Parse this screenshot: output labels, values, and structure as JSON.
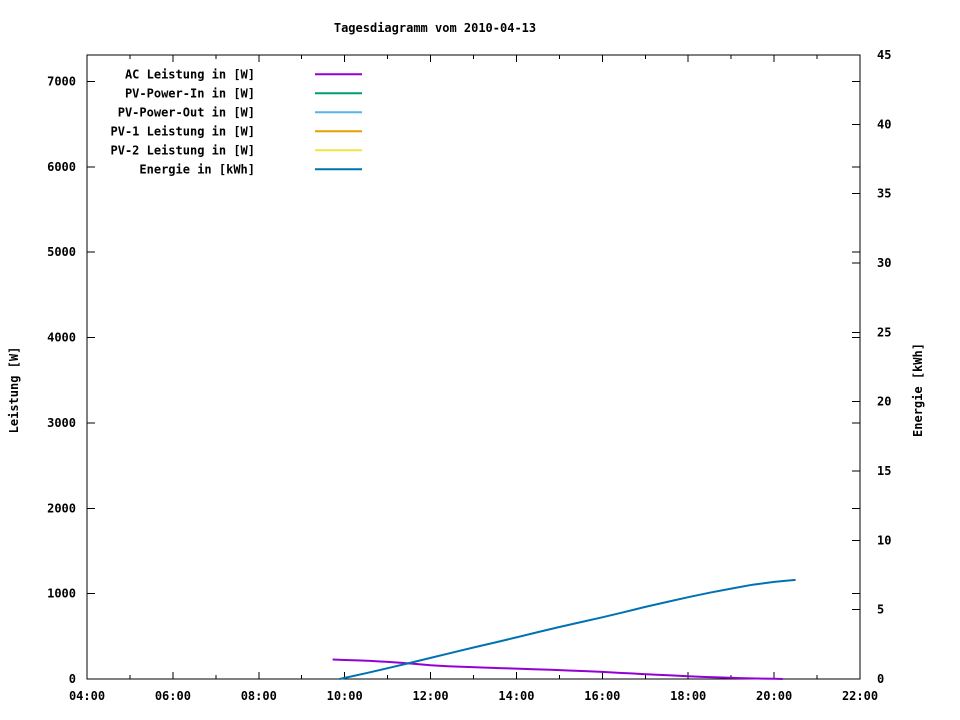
{
  "page": {
    "background": "#FFFFFF",
    "text_color": "#000000"
  },
  "chart_data": {
    "type": "line",
    "title": "Tagesdiagramm vom 2010-04-13",
    "grid": false,
    "legend_position": "top-left",
    "x_axis": {
      "unit": "time-of-day",
      "start_hour": 4,
      "end_hour": 22,
      "major_step_hours": 2,
      "minor_step_hours": 1,
      "tick_labels": [
        "04:00",
        "06:00",
        "08:00",
        "10:00",
        "12:00",
        "14:00",
        "16:00",
        "18:00",
        "20:00",
        "22:00"
      ]
    },
    "y_left": {
      "label": "Leistung [W]",
      "ticks": [
        0,
        1000,
        2000,
        3000,
        4000,
        5000,
        6000,
        7000
      ],
      "range": [
        0,
        7310
      ]
    },
    "y_right": {
      "label": "Energie [kWh]",
      "ticks": [
        0,
        5,
        10,
        15,
        20,
        25,
        30,
        35,
        40,
        45
      ],
      "range": [
        0,
        45
      ]
    },
    "series": [
      {
        "name": "AC Leistung in [W]",
        "color": "#9400D3",
        "axis": "left",
        "points": [
          [
            9.72,
            228
          ],
          [
            10.0,
            222
          ],
          [
            10.3,
            218
          ],
          [
            10.6,
            212
          ],
          [
            11.0,
            200
          ],
          [
            11.3,
            190
          ],
          [
            11.6,
            178
          ],
          [
            12.0,
            160
          ],
          [
            12.4,
            150
          ],
          [
            12.8,
            142
          ],
          [
            13.2,
            135
          ],
          [
            13.6,
            128
          ],
          [
            14.0,
            122
          ],
          [
            14.4,
            115
          ],
          [
            14.8,
            108
          ],
          [
            15.2,
            100
          ],
          [
            15.6,
            92
          ],
          [
            16.0,
            83
          ],
          [
            16.4,
            72
          ],
          [
            16.8,
            62
          ],
          [
            17.2,
            52
          ],
          [
            17.6,
            42
          ],
          [
            18.0,
            32
          ],
          [
            18.4,
            24
          ],
          [
            18.8,
            17
          ],
          [
            19.2,
            11
          ],
          [
            19.6,
            6
          ],
          [
            20.0,
            2
          ],
          [
            20.2,
            0
          ]
        ]
      },
      {
        "name": "PV-Power-In in [W]",
        "color": "#009E73",
        "axis": "left",
        "points": []
      },
      {
        "name": "PV-Power-Out in [W]",
        "color": "#56B4E9",
        "axis": "left",
        "points": []
      },
      {
        "name": "PV-1 Leistung in [W]",
        "color": "#E69F00",
        "axis": "left",
        "points": []
      },
      {
        "name": "PV-2 Leistung in [W]",
        "color": "#F0E442",
        "axis": "left",
        "points": []
      },
      {
        "name": "Energie in [kWh]",
        "color": "#0072B2",
        "axis": "right",
        "points": [
          [
            9.88,
            0
          ],
          [
            10.5,
            0.42
          ],
          [
            11.0,
            0.78
          ],
          [
            11.5,
            1.15
          ],
          [
            12.0,
            1.52
          ],
          [
            12.5,
            1.9
          ],
          [
            13.0,
            2.27
          ],
          [
            13.5,
            2.63
          ],
          [
            14.0,
            3.0
          ],
          [
            14.5,
            3.38
          ],
          [
            15.0,
            3.75
          ],
          [
            15.5,
            4.1
          ],
          [
            16.0,
            4.45
          ],
          [
            16.5,
            4.82
          ],
          [
            17.0,
            5.2
          ],
          [
            17.5,
            5.55
          ],
          [
            18.0,
            5.9
          ],
          [
            18.5,
            6.22
          ],
          [
            19.0,
            6.52
          ],
          [
            19.5,
            6.8
          ],
          [
            20.0,
            7.0
          ],
          [
            20.5,
            7.15
          ]
        ]
      }
    ]
  }
}
